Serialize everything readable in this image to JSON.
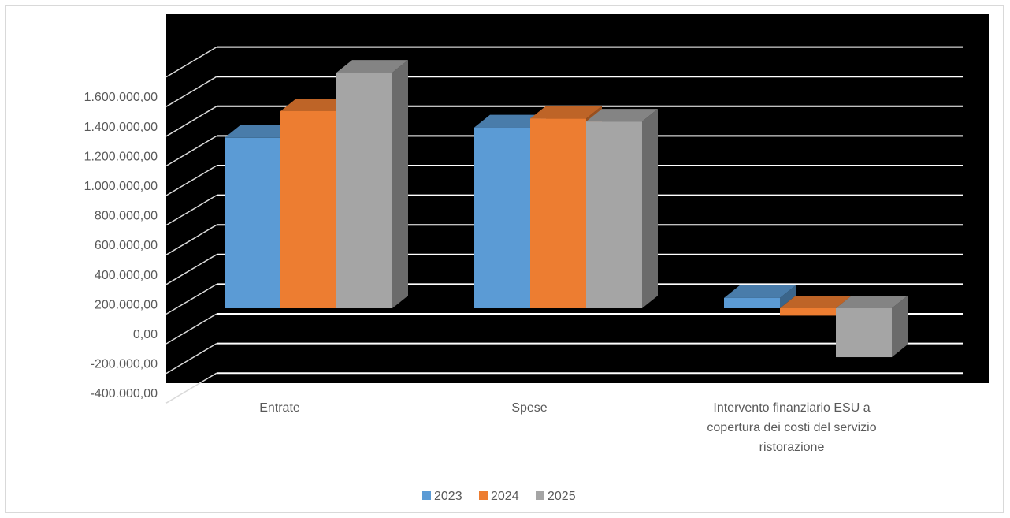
{
  "chart_data": {
    "type": "bar",
    "variant": "3d-clustered-column",
    "title": "",
    "xlabel": "",
    "ylabel": "",
    "categories": [
      "Entrate",
      "Spese",
      "Intervento finanziario ESU a copertura dei costi del servizio ristorazione"
    ],
    "category_label_lines": [
      [
        "Entrate"
      ],
      [
        "Spese"
      ],
      [
        "Intervento finanziario ESU a",
        "copertura dei costi del servizio",
        "ristorazione"
      ]
    ],
    "series": [
      {
        "name": "2023",
        "color": "#5b9bd5",
        "values": [
          1150000,
          1220000,
          70000
        ]
      },
      {
        "name": "2024",
        "color": "#ed7d31",
        "values": [
          1330000,
          1280000,
          -50000
        ]
      },
      {
        "name": "2025",
        "color": "#a5a5a5",
        "values": [
          1590000,
          1260000,
          -330000
        ]
      }
    ],
    "yticks": [
      "1.600.000,00",
      "1.400.000,00",
      "1.200.000,00",
      "1.000.000,00",
      "800.000,00",
      "600.000,00",
      "400.000,00",
      "200.000,00",
      "0,00",
      "-200.000,00",
      "-400.000,00"
    ],
    "ylim": [
      -400000,
      1800000
    ],
    "grid": true,
    "plot_background": "#000000",
    "gridline_color": "#ffffff",
    "legend_position": "bottom"
  }
}
